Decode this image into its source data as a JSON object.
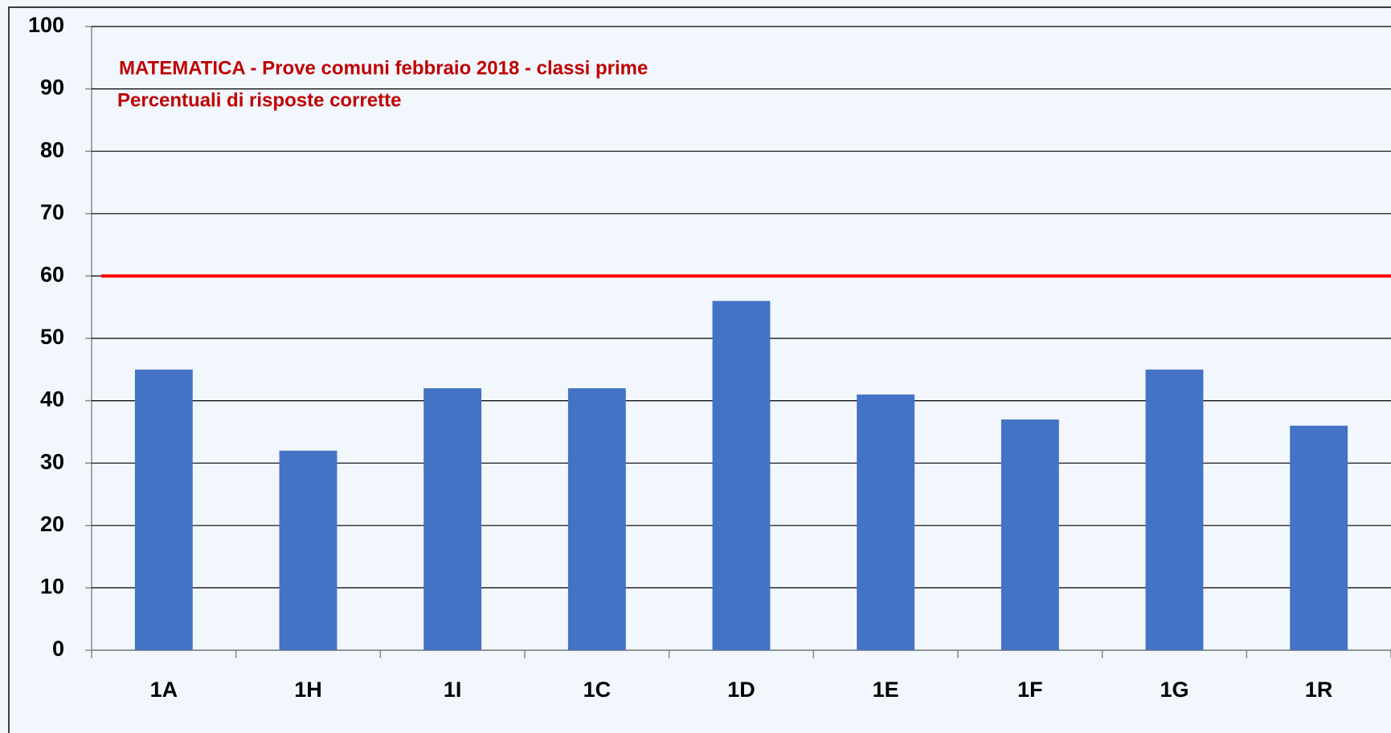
{
  "chart_data": {
    "type": "bar",
    "title": "MATEMATICA - Prove comuni  febbraio 2018 - classi prime",
    "subtitle": "Percentuali di risposte corrette",
    "categories": [
      "1A",
      "1H",
      "1I",
      "1C",
      "1D",
      "1E",
      "1F",
      "1G",
      "1R"
    ],
    "values": [
      45,
      32,
      42,
      42,
      56,
      41,
      37,
      45,
      36
    ],
    "color": "#4472c4",
    "reference_line": {
      "value": 60,
      "color": "#ff0000"
    },
    "ylim": [
      0,
      100
    ],
    "yticks": [
      0,
      10,
      20,
      30,
      40,
      50,
      60,
      70,
      80,
      90,
      100
    ],
    "grid": true
  }
}
